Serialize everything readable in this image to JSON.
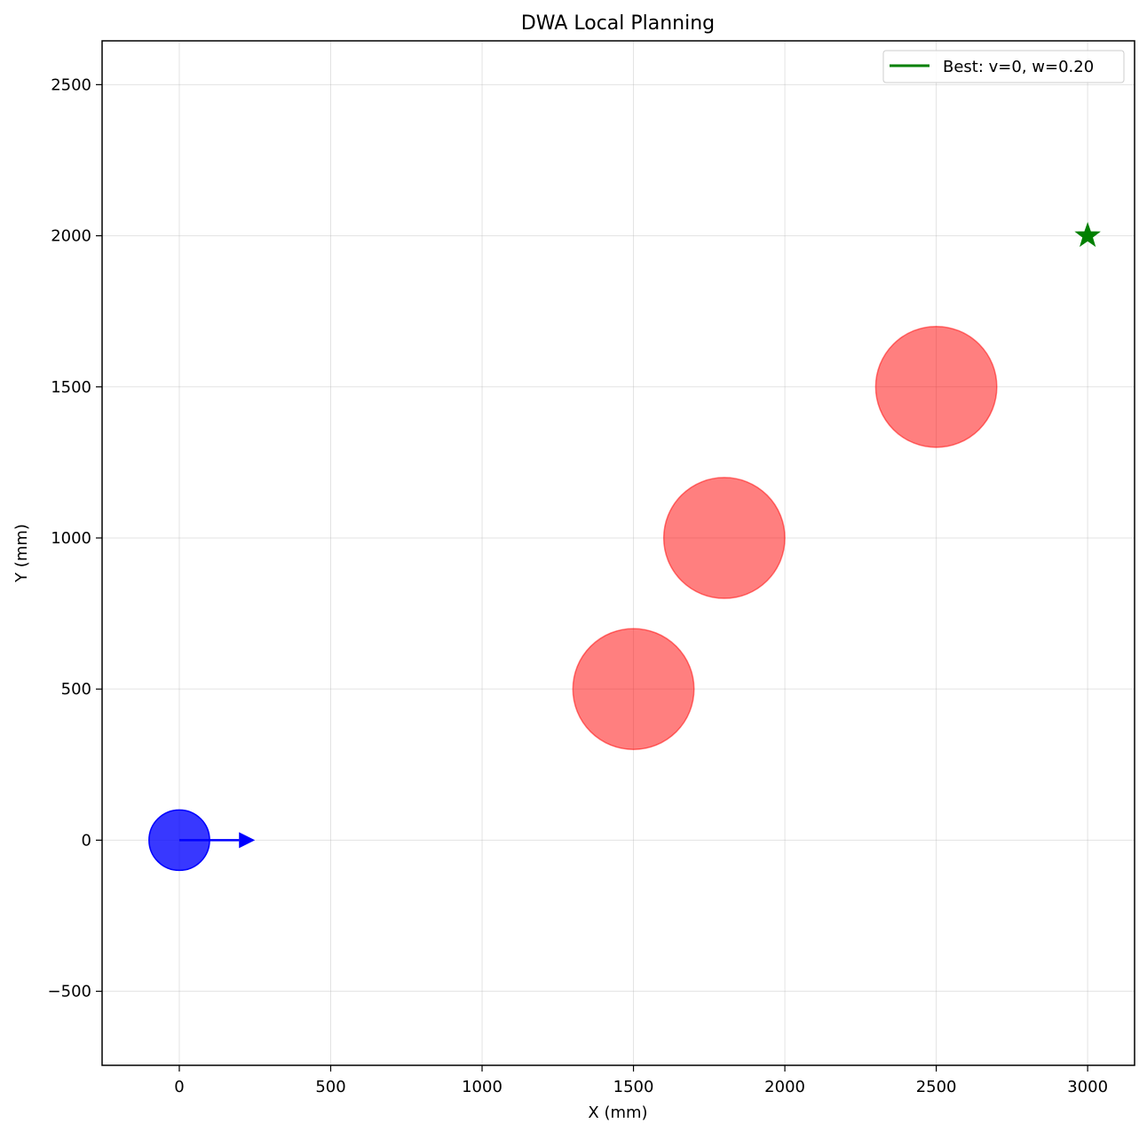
{
  "chart_data": {
    "type": "scatter",
    "title": "DWA Local Planning",
    "xlabel": "X (mm)",
    "ylabel": "Y (mm)",
    "xlim": [
      -255,
      3155
    ],
    "ylim": [
      -745,
      2645
    ],
    "xticks": [
      0,
      500,
      1000,
      1500,
      2000,
      2500,
      3000
    ],
    "yticks": [
      -500,
      0,
      500,
      1000,
      1500,
      2000,
      2500
    ],
    "xtick_labels": [
      "0",
      "500",
      "1000",
      "1500",
      "2000",
      "2500",
      "3000"
    ],
    "ytick_labels": [
      "−500",
      "0",
      "500",
      "1000",
      "1500",
      "2000",
      "2500"
    ],
    "grid": true,
    "legend": {
      "location": "top-right",
      "entries": [
        {
          "label": "Best: v=0, w=0.20",
          "color": "#008000",
          "marker": "line"
        }
      ]
    },
    "robot": {
      "x": 0,
      "y": 0,
      "radius": 100,
      "heading_deg": 0,
      "arrow_length": 250,
      "color": "#0000ff"
    },
    "obstacles": [
      {
        "x": 1500,
        "y": 500,
        "radius": 200
      },
      {
        "x": 1800,
        "y": 1000,
        "radius": 200
      },
      {
        "x": 2500,
        "y": 1500,
        "radius": 200
      }
    ],
    "obstacle_color": "#ff0000",
    "goal": {
      "x": 3000,
      "y": 2000,
      "marker": "star",
      "color": "#008000"
    },
    "best_trajectory": {
      "v": 0,
      "w": 0.2,
      "color": "#008000"
    }
  }
}
